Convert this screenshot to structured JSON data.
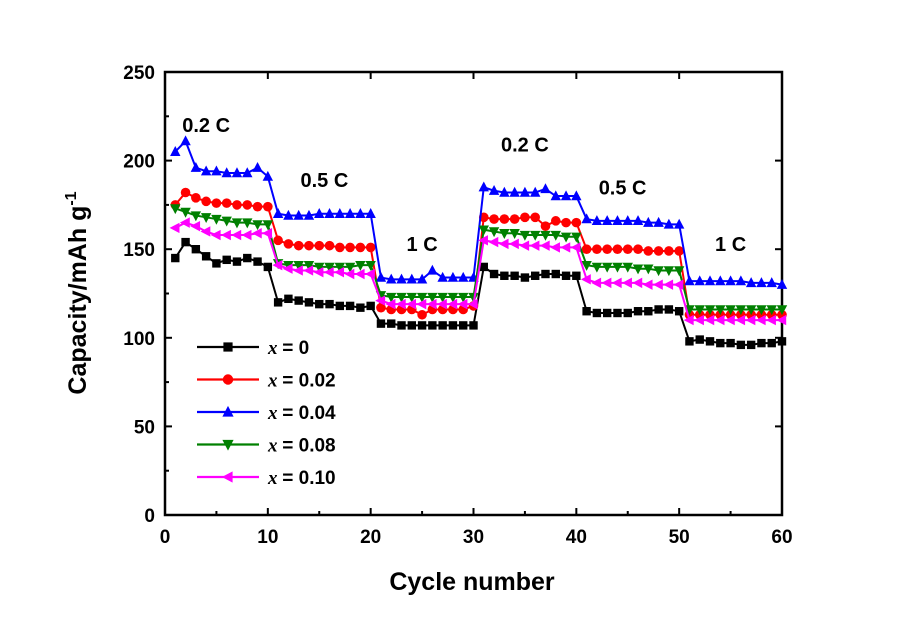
{
  "chart_data": {
    "type": "line",
    "xlabel": "Cycle number",
    "ylabel": "Capacity/mAh g",
    "ylabel_sup": "-1",
    "xlim": [
      0,
      60
    ],
    "ylim": [
      0,
      250
    ],
    "xticks": [
      0,
      10,
      20,
      30,
      40,
      50,
      60
    ],
    "yticks": [
      0,
      50,
      100,
      150,
      200,
      250
    ],
    "grid": false,
    "legend_position": "lower-left",
    "annotations": [
      {
        "text": "0.2 C",
        "x": 4,
        "y": 216
      },
      {
        "text": "0.5 C",
        "x": 15.5,
        "y": 185
      },
      {
        "text": "1 C",
        "x": 25,
        "y": 149
      },
      {
        "text": "0.2 C",
        "x": 35,
        "y": 205
      },
      {
        "text": "0.5 C",
        "x": 44.5,
        "y": 181
      },
      {
        "text": "1 C",
        "x": 55,
        "y": 149
      }
    ],
    "x": [
      1,
      2,
      3,
      4,
      5,
      6,
      7,
      8,
      9,
      10,
      11,
      12,
      13,
      14,
      15,
      16,
      17,
      18,
      19,
      20,
      21,
      22,
      23,
      24,
      25,
      26,
      27,
      28,
      29,
      30,
      31,
      32,
      33,
      34,
      35,
      36,
      37,
      38,
      39,
      40,
      41,
      42,
      43,
      44,
      45,
      46,
      47,
      48,
      49,
      50,
      51,
      52,
      53,
      54,
      55,
      56,
      57,
      58,
      59,
      60
    ],
    "series": [
      {
        "name": "= 0",
        "x_label": "x",
        "color": "#000000",
        "marker": "square",
        "values": [
          145,
          154,
          150,
          146,
          142,
          144,
          143,
          145,
          143,
          140,
          120,
          122,
          121,
          120,
          119,
          119,
          118,
          118,
          117,
          118,
          108,
          108,
          107,
          107,
          107,
          107,
          107,
          107,
          107,
          107,
          140,
          136,
          135,
          135,
          134,
          135,
          136,
          136,
          135,
          135,
          115,
          114,
          114,
          114,
          114,
          115,
          115,
          116,
          116,
          115,
          98,
          99,
          98,
          97,
          97,
          96,
          96,
          97,
          97,
          98
        ]
      },
      {
        "name": "= 0.02",
        "x_label": "x",
        "color": "#ff0000",
        "marker": "circle",
        "values": [
          175,
          182,
          179,
          177,
          176,
          176,
          175,
          175,
          174,
          174,
          155,
          153,
          152,
          152,
          152,
          152,
          151,
          151,
          151,
          151,
          117,
          116,
          116,
          116,
          113,
          116,
          116,
          116,
          116,
          118,
          168,
          167,
          167,
          167,
          168,
          168,
          163,
          166,
          165,
          165,
          150,
          150,
          150,
          150,
          150,
          150,
          149,
          149,
          149,
          149,
          113,
          113,
          113,
          113,
          113,
          113,
          113,
          113,
          113,
          113
        ]
      },
      {
        "name": "= 0.04",
        "x_label": "x",
        "color": "#0000ff",
        "marker": "triangle-up",
        "values": [
          205,
          211,
          196,
          194,
          194,
          193,
          193,
          193,
          196,
          191,
          170,
          169,
          169,
          169,
          170,
          170,
          170,
          170,
          170,
          170,
          134,
          133,
          133,
          133,
          133,
          138,
          134,
          134,
          134,
          134,
          185,
          183,
          182,
          182,
          182,
          182,
          184,
          180,
          180,
          180,
          167,
          166,
          166,
          166,
          166,
          166,
          165,
          165,
          164,
          164,
          132,
          132,
          132,
          132,
          132,
          132,
          131,
          131,
          131,
          130
        ]
      },
      {
        "name": "= 0.08",
        "x_label": "x",
        "color": "#008000",
        "marker": "triangle-down",
        "values": [
          173,
          171,
          169,
          168,
          167,
          166,
          165,
          165,
          164,
          164,
          142,
          141,
          141,
          141,
          140,
          140,
          140,
          140,
          141,
          141,
          124,
          123,
          123,
          123,
          123,
          123,
          123,
          123,
          123,
          123,
          161,
          160,
          159,
          159,
          158,
          158,
          158,
          158,
          157,
          157,
          141,
          140,
          140,
          140,
          140,
          139,
          139,
          138,
          138,
          138,
          116,
          116,
          116,
          116,
          116,
          116,
          116,
          116,
          116,
          116
        ]
      },
      {
        "name": "= 0.10",
        "x_label": "x",
        "color": "#ff00ff",
        "marker": "triangle-left",
        "values": [
          162,
          165,
          163,
          160,
          158,
          158,
          158,
          158,
          159,
          159,
          141,
          139,
          138,
          138,
          137,
          137,
          137,
          136,
          136,
          136,
          121,
          119,
          119,
          119,
          119,
          119,
          119,
          119,
          119,
          119,
          155,
          154,
          153,
          153,
          152,
          152,
          152,
          151,
          151,
          151,
          133,
          131,
          131,
          131,
          131,
          131,
          130,
          130,
          130,
          130,
          110,
          110,
          110,
          110,
          110,
          110,
          110,
          110,
          110,
          110
        ]
      }
    ]
  }
}
